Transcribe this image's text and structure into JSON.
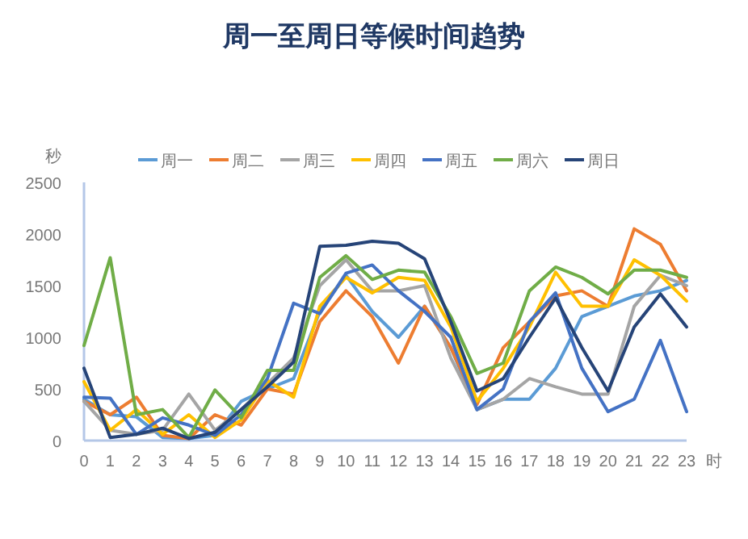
{
  "chart_data": {
    "type": "line",
    "title": "周一至周日等候时间趋势",
    "ylabel": "秒",
    "xlabel": "时",
    "x": [
      0,
      1,
      2,
      3,
      4,
      5,
      6,
      7,
      8,
      9,
      10,
      11,
      12,
      13,
      14,
      15,
      16,
      17,
      18,
      19,
      20,
      21,
      22,
      23
    ],
    "xlim": [
      0,
      23
    ],
    "xticks": [
      0,
      1,
      2,
      3,
      4,
      5,
      6,
      7,
      8,
      9,
      10,
      11,
      12,
      13,
      14,
      15,
      16,
      17,
      18,
      19,
      20,
      21,
      22,
      23
    ],
    "ylim": [
      0,
      2500
    ],
    "yticks": [
      0,
      500,
      1000,
      1500,
      2000,
      2500
    ],
    "grid": false,
    "legend": "top",
    "marker": "none",
    "line_style": "solid",
    "series": [
      {
        "name": "周一",
        "color": "#5b9bd5",
        "values": [
          400,
          250,
          230,
          30,
          20,
          50,
          380,
          500,
          600,
          1250,
          1600,
          1250,
          1000,
          1300,
          900,
          300,
          400,
          400,
          700,
          1200,
          1300,
          1400,
          1450,
          1550
        ]
      },
      {
        "name": "周二",
        "color": "#ed7d31",
        "values": [
          380,
          250,
          420,
          50,
          20,
          250,
          150,
          500,
          450,
          1150,
          1450,
          1200,
          750,
          1300,
          900,
          350,
          900,
          1150,
          1400,
          1450,
          1300,
          2050,
          1900,
          1450
        ]
      },
      {
        "name": "周三",
        "color": "#a5a5a5",
        "values": [
          380,
          100,
          60,
          100,
          450,
          100,
          300,
          550,
          800,
          1500,
          1750,
          1450,
          1450,
          1500,
          800,
          300,
          400,
          600,
          520,
          450,
          450,
          1300,
          1600,
          1500
        ]
      },
      {
        "name": "周四",
        "color": "#ffc000",
        "values": [
          570,
          100,
          300,
          60,
          250,
          30,
          200,
          580,
          420,
          1300,
          1580,
          1430,
          1580,
          1550,
          1100,
          380,
          700,
          1100,
          1630,
          1300,
          1300,
          1750,
          1600,
          1350
        ]
      },
      {
        "name": "周五",
        "color": "#4472c4",
        "values": [
          420,
          410,
          60,
          220,
          150,
          50,
          250,
          600,
          1330,
          1230,
          1620,
          1700,
          1450,
          1250,
          1000,
          300,
          500,
          1150,
          1430,
          700,
          280,
          400,
          970,
          280
        ]
      },
      {
        "name": "周六",
        "color": "#70ad47",
        "values": [
          920,
          1770,
          250,
          300,
          30,
          490,
          220,
          680,
          680,
          1580,
          1790,
          1560,
          1650,
          1630,
          1200,
          650,
          750,
          1450,
          1680,
          1580,
          1420,
          1650,
          1650,
          1580
        ]
      },
      {
        "name": "周日",
        "color": "#264478",
        "values": [
          700,
          30,
          60,
          120,
          20,
          80,
          300,
          520,
          760,
          1880,
          1890,
          1930,
          1910,
          1760,
          1150,
          480,
          600,
          1000,
          1380,
          900,
          480,
          1100,
          1420,
          1100
        ]
      }
    ]
  }
}
